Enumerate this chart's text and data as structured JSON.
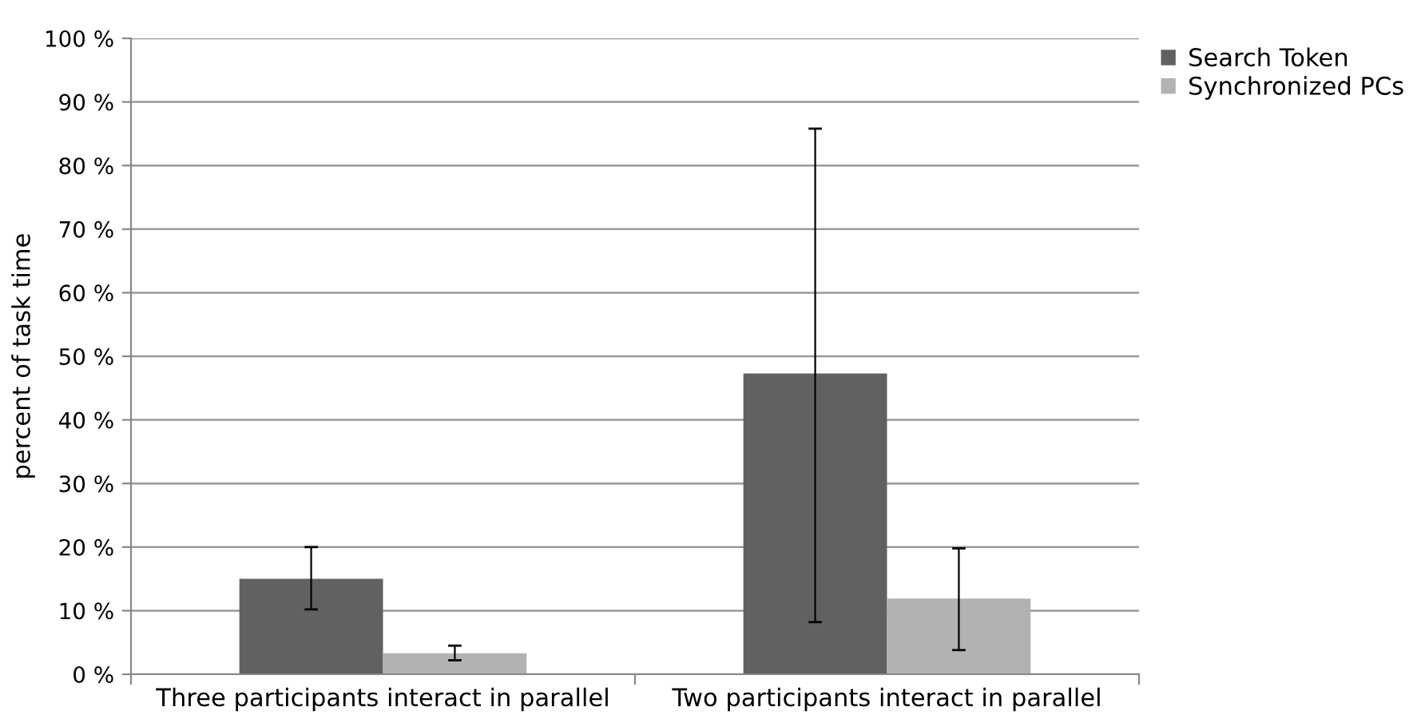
{
  "chart_data": {
    "type": "bar",
    "ylabel": "percent of task time",
    "categories": [
      "Three participants interact in parallel",
      "Two participants interact in parallel"
    ],
    "series": [
      {
        "name": "Search Token",
        "color": "#616161",
        "values": [
          15,
          47.3
        ],
        "errors": [
          [
            10.2,
            20
          ],
          [
            8.2,
            85.8
          ]
        ]
      },
      {
        "name": "Synchronized PCs",
        "color": "#b2b2b2",
        "values": [
          3.3,
          11.9
        ],
        "errors": [
          [
            2.2,
            4.5
          ],
          [
            3.8,
            19.8
          ]
        ]
      }
    ],
    "ylim": [
      0,
      100
    ],
    "yticks": [
      {
        "value": 0,
        "label": "0 %"
      },
      {
        "value": 10,
        "label": "10 %"
      },
      {
        "value": 20,
        "label": "20 %"
      },
      {
        "value": 30,
        "label": "30 %"
      },
      {
        "value": 40,
        "label": "40 %"
      },
      {
        "value": 50,
        "label": "50 %"
      },
      {
        "value": 60,
        "label": "60 %"
      },
      {
        "value": 70,
        "label": "70 %"
      },
      {
        "value": 80,
        "label": "80 %"
      },
      {
        "value": 90,
        "label": "90 %"
      },
      {
        "value": 100,
        "label": "100 %"
      }
    ],
    "grid": "y",
    "legend": "top right"
  }
}
